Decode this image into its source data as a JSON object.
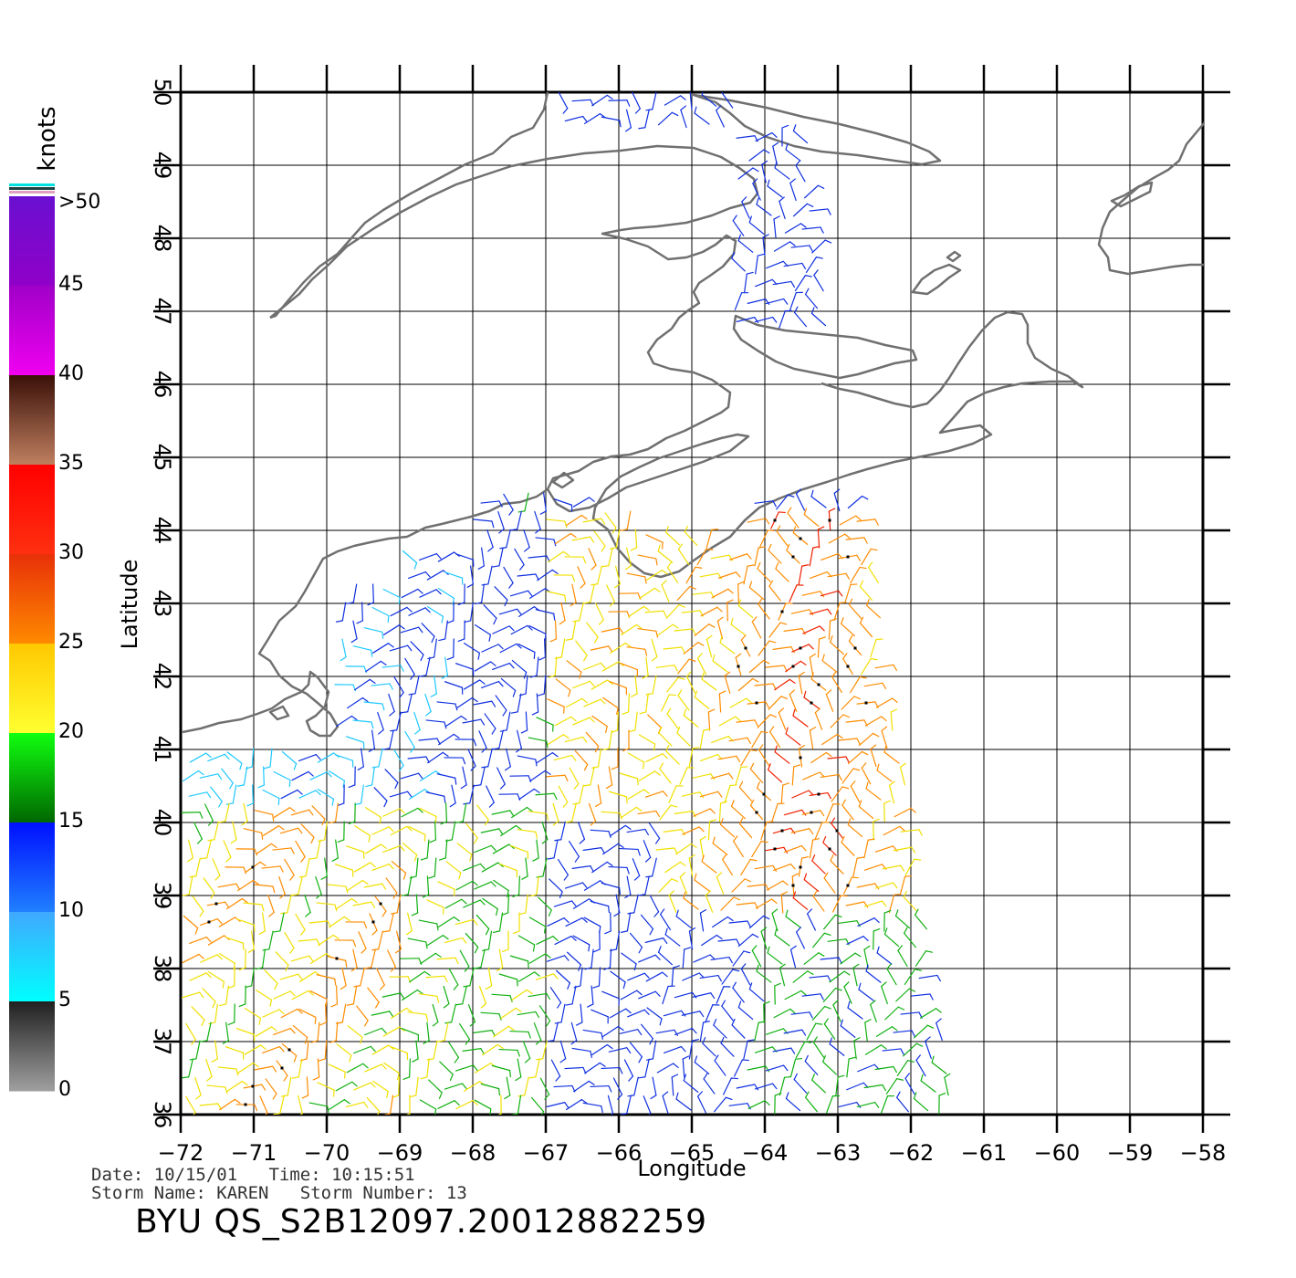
{
  "map": {
    "xlabel": "Longitude",
    "ylabel": "Latitude",
    "lon_range": [
      -72,
      -58
    ],
    "lat_range": [
      36,
      50
    ],
    "lon_ticks": [
      "−72",
      "−71",
      "−70",
      "−69",
      "−68",
      "−67",
      "−66",
      "−65",
      "−64",
      "−63",
      "−62",
      "−61",
      "−60",
      "−59",
      "−58"
    ],
    "lat_ticks": [
      "36",
      "37",
      "38",
      "39",
      "40",
      "41",
      "42",
      "43",
      "44",
      "45",
      "46",
      "47",
      "48",
      "49",
      "50"
    ],
    "grid": true,
    "coastline_color": "#666666"
  },
  "colorbar": {
    "unit_label": "knots",
    "labels": [
      ">50",
      "45",
      "40",
      "35",
      "30",
      "25",
      "20",
      "15",
      "10",
      "5",
      "0"
    ],
    "bands": [
      {
        "from": 50,
        "to": 45,
        "top": "#6a10d0",
        "bottom": "#9000c8"
      },
      {
        "from": 45,
        "to": 40,
        "top": "#a000c8",
        "bottom": "#f000f0"
      },
      {
        "from": 40,
        "to": 35,
        "top": "#3a1008",
        "bottom": "#c08060"
      },
      {
        "from": 35,
        "to": 30,
        "top": "#ff0000",
        "bottom": "#ff3010"
      },
      {
        "from": 30,
        "to": 25,
        "top": "#e83008",
        "bottom": "#ff8a00"
      },
      {
        "from": 25,
        "to": 20,
        "top": "#ffc800",
        "bottom": "#ffff30"
      },
      {
        "from": 20,
        "to": 15,
        "top": "#10ff10",
        "bottom": "#006600"
      },
      {
        "from": 15,
        "to": 10,
        "top": "#0010ff",
        "bottom": "#2080ff"
      },
      {
        "from": 10,
        "to": 5,
        "top": "#40a8ff",
        "bottom": "#00ffff"
      },
      {
        "from": 5,
        "to": 0,
        "top": "#202020",
        "bottom": "#a0a0a0"
      }
    ]
  },
  "info": {
    "line1": "Date: 10/15/01   Time: 10:15:51",
    "line2": "Storm Name: KAREN   Storm Number: 13",
    "product": "BYU QS_S2B12097.20012882259"
  }
}
